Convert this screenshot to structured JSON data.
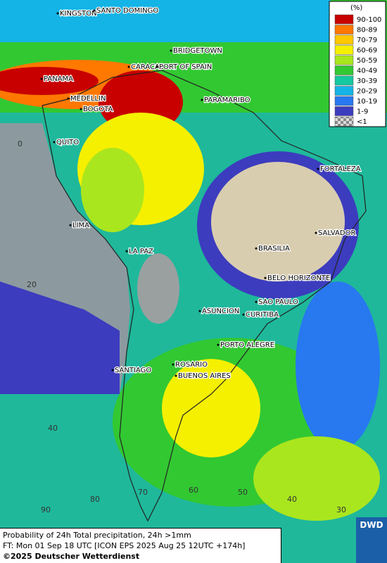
{
  "legend": {
    "unit": "(%)",
    "items": [
      {
        "label": "90-100",
        "color": "#c80000"
      },
      {
        "label": "80-89",
        "color": "#ff7800"
      },
      {
        "label": "70-79",
        "color": "#ffc800"
      },
      {
        "label": "60-69",
        "color": "#f5f000"
      },
      {
        "label": "50-59",
        "color": "#aae61e"
      },
      {
        "label": "40-49",
        "color": "#32c832"
      },
      {
        "label": "30-39",
        "color": "#14c8a0"
      },
      {
        "label": "20-29",
        "color": "#14b4e6"
      },
      {
        "label": "10-19",
        "color": "#2878f0"
      },
      {
        "label": "1-9",
        "color": "#3c3cbe"
      },
      {
        "label": "<1",
        "color": "#b4b4b4"
      }
    ]
  },
  "cities": [
    "KINGSTON",
    "SANTO DOMINGO",
    "BRIDGETOWN",
    "CARACAS",
    "PORT OF SPAIN",
    "PANAMA",
    "MEDELLIN",
    "BOGOTA",
    "PARAMARIBO",
    "QUITO",
    "FORTALEZA",
    "LIMA",
    "SALVADOR",
    "LA PAZ",
    "BRASILIA",
    "BELO HORIZONTE",
    "SAO PAULO",
    "ASUNCION",
    "CURITIBA",
    "PORTO ALEGRE",
    "ROSARIO",
    "SANTIAGO",
    "BUENOS AIRES"
  ],
  "grid_labels": [
    "0",
    "20",
    "40",
    "90",
    "80",
    "70",
    "60",
    "50",
    "40",
    "30"
  ],
  "footer": {
    "line1": "Probability of 24h Total precipitation, 24h >1mm",
    "line2": "FT: Mon 01 Sep 18 UTC [ICON EPS 2025 Aug 25 12UTC +174h]",
    "line3": "©2025 Deutscher Wetterdienst"
  },
  "logo": "DWD"
}
